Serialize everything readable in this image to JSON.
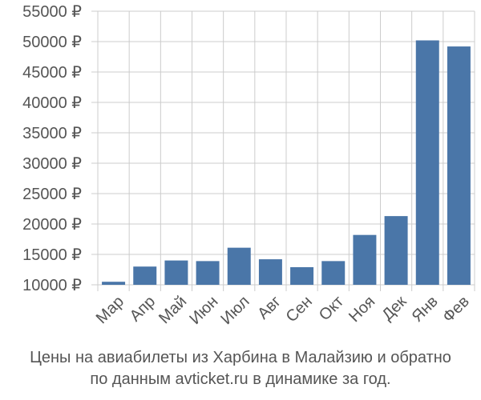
{
  "chart_data": {
    "type": "bar",
    "categories": [
      "Мар",
      "Апр",
      "Май",
      "Июн",
      "Июл",
      "Авг",
      "Сен",
      "Окт",
      "Ноя",
      "Дек",
      "Янв",
      "Фев"
    ],
    "values": [
      10500,
      13000,
      14000,
      13900,
      16100,
      14200,
      12900,
      13900,
      18200,
      21300,
      50200,
      49200
    ],
    "y_ticks": [
      10000,
      15000,
      20000,
      25000,
      30000,
      35000,
      40000,
      45000,
      50000,
      55000
    ],
    "y_tick_labels": [
      "10000 ₽",
      "15000 ₽",
      "20000 ₽",
      "25000 ₽",
      "30000 ₽",
      "35000 ₽",
      "40000 ₽",
      "45000 ₽",
      "50000 ₽",
      "55000 ₽"
    ],
    "ylim": [
      10000,
      55000
    ],
    "title": "",
    "xlabel": "",
    "ylabel": "",
    "grid": "on",
    "bar_color": "#4a76a8",
    "grid_color": "#cccccc"
  },
  "caption": {
    "line1": "Цены на авиабилеты из Харбина в Малайзию и обратно",
    "line2": "по данным avticket.ru в динамике за год."
  }
}
